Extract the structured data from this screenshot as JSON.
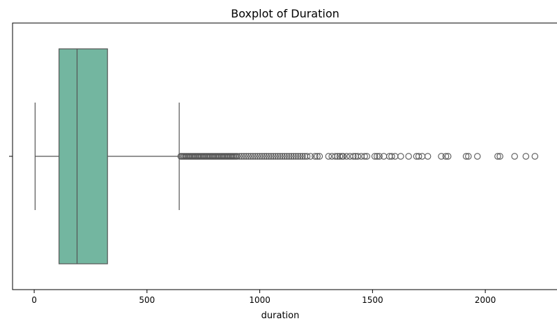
{
  "chart_data": {
    "type": "boxplot",
    "title": "Boxplot of Duration",
    "xlabel": "duration",
    "ylabel": "",
    "xlim": [
      -96,
      2321
    ],
    "xticks": [
      0,
      500,
      1000,
      1500,
      2000
    ],
    "xtick_labels": [
      "0",
      "500",
      "1000",
      "1500",
      "2000"
    ],
    "ytick_labels": [
      ""
    ],
    "grid": false,
    "orientation": "horizontal",
    "box": {
      "whisker_low": 4,
      "q1": 110,
      "median": 190,
      "q3": 325,
      "whisker_high": 643
    },
    "outliers": [
      650,
      655,
      660,
      665,
      670,
      675,
      680,
      685,
      690,
      695,
      700,
      705,
      710,
      715,
      720,
      725,
      730,
      735,
      740,
      745,
      750,
      755,
      760,
      765,
      770,
      775,
      780,
      785,
      790,
      795,
      800,
      805,
      810,
      815,
      820,
      825,
      830,
      835,
      840,
      845,
      850,
      855,
      860,
      865,
      870,
      875,
      880,
      885,
      890,
      895,
      900,
      910,
      920,
      930,
      940,
      950,
      960,
      970,
      980,
      990,
      1000,
      1010,
      1020,
      1030,
      1040,
      1050,
      1060,
      1070,
      1080,
      1090,
      1100,
      1110,
      1120,
      1130,
      1140,
      1150,
      1160,
      1170,
      1180,
      1190,
      1200,
      1210,
      1225,
      1245,
      1255,
      1265,
      1305,
      1320,
      1335,
      1345,
      1355,
      1365,
      1370,
      1385,
      1400,
      1415,
      1425,
      1435,
      1450,
      1465,
      1475,
      1510,
      1520,
      1530,
      1550,
      1575,
      1585,
      1600,
      1625,
      1660,
      1695,
      1705,
      1720,
      1745,
      1805,
      1825,
      1835,
      1915,
      1925,
      1965,
      2055,
      2065,
      2130,
      2180,
      2220
    ],
    "colors": {
      "box_fill": "#73b6a0",
      "line": "#555555",
      "axis": "#000000"
    }
  }
}
